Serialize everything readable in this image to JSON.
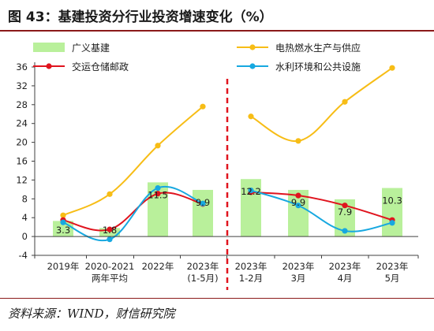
{
  "figure": {
    "title": "图 43：基建投资分行业投资增速变化（%）",
    "source": "资料来源：WIND，财信研究院"
  },
  "chart_data": {
    "type": "bar",
    "categories": [
      "2019年",
      "2020-2021\n两年平均",
      "2022年",
      "2023年\n(1-5月)",
      "2023年\n1-2月",
      "2023年\n3月",
      "2023年\n4月",
      "2023年\n5月"
    ],
    "ylim": [
      -4,
      36
    ],
    "yticks": [
      -4,
      0,
      4,
      8,
      12,
      16,
      20,
      24,
      28,
      32,
      36
    ],
    "grid": false,
    "legend_position": "top",
    "colors": {
      "bar": "#b9f09b",
      "power": "#f7bd16",
      "transport": "#e0141e",
      "water": "#17a8e0",
      "divider": "#e0141e",
      "axis": "#404040"
    },
    "series": [
      {
        "name": "广义基建",
        "type": "bar",
        "values": [
          3.3,
          1.8,
          11.5,
          9.9,
          12.2,
          9.9,
          7.9,
          10.3
        ]
      },
      {
        "name": "电热燃水生产与供应",
        "type": "line",
        "values": [
          4.5,
          9.0,
          19.3,
          27.6,
          25.5,
          20.3,
          28.6,
          35.8
        ]
      },
      {
        "name": "交运仓储邮政",
        "type": "line",
        "values": [
          3.5,
          1.5,
          9.1,
          6.9,
          9.4,
          8.7,
          6.6,
          3.5
        ]
      },
      {
        "name": "水利环境和公共设施",
        "type": "line",
        "values": [
          3.0,
          -0.6,
          10.3,
          7.0,
          9.8,
          6.6,
          1.2,
          2.9
        ]
      }
    ],
    "bar_labels": [
      "3.3",
      "1.8",
      "11.5",
      "9.9",
      "12.2",
      "9.9",
      "7.9",
      "10.3"
    ],
    "segments": [
      [
        0,
        3
      ],
      [
        4,
        7
      ]
    ]
  }
}
